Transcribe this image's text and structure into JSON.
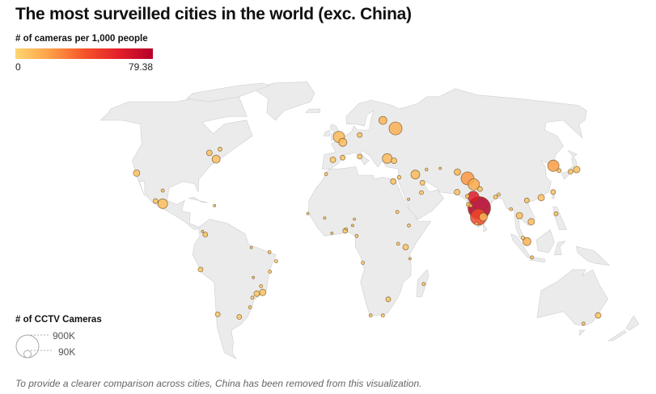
{
  "title": "The most surveilled cities in the world (exc. China)",
  "color_legend": {
    "title": "# of cameras per 1,000 people",
    "min_label": "0",
    "max_label": "79.38",
    "min": 0,
    "max": 79.38,
    "colors": [
      "#fdd671",
      "#fca046",
      "#f5542a",
      "#e3202a",
      "#b5002a"
    ]
  },
  "size_legend": {
    "title": "# of CCTV Cameras",
    "big_label": "900K",
    "small_label": "90K",
    "big_value": 900000,
    "small_value": 90000
  },
  "footnote": "To provide a clearer comparison across cities, China has been removed from this visualization.",
  "colors": {
    "land": "#ebebeb",
    "border": "#cfcfcf",
    "bubble_stroke": "#6b4c1e"
  },
  "bubbles": [
    {
      "lon": -0.1,
      "lat": 51.5,
      "rate": 10,
      "cameras": 225000
    },
    {
      "lon": 2.35,
      "lat": 48.85,
      "rate": 8,
      "cameras": 115000
    },
    {
      "lon": 13.4,
      "lat": 52.5,
      "rate": 6,
      "cameras": 41000
    },
    {
      "lon": 37.6,
      "lat": 55.75,
      "rate": 14,
      "cameras": 294000
    },
    {
      "lon": 30.3,
      "lat": 59.9,
      "rate": 12,
      "cameras": 115000
    },
    {
      "lon": -3.7,
      "lat": 40.4,
      "rate": 6,
      "cameras": 56000
    },
    {
      "lon": 2.2,
      "lat": 41.4,
      "rate": 6,
      "cameras": 41000
    },
    {
      "lon": 12.5,
      "lat": 41.9,
      "rate": 6,
      "cameras": 41000
    },
    {
      "lon": 29.0,
      "lat": 41.0,
      "rate": 10,
      "cameras": 165000
    },
    {
      "lon": 32.9,
      "lat": 39.9,
      "rate": 7,
      "cameras": 56000
    },
    {
      "lon": -7.6,
      "lat": 33.6,
      "rate": 5,
      "cameras": 18000
    },
    {
      "lon": 31.2,
      "lat": 30.0,
      "rate": 7,
      "cameras": 56000
    },
    {
      "lon": 34.8,
      "lat": 32.0,
      "rate": 5,
      "cameras": 25000
    },
    {
      "lon": 44.4,
      "lat": 33.3,
      "rate": 10,
      "cameras": 140000
    },
    {
      "lon": 51.4,
      "lat": 35.7,
      "rate": 5,
      "cameras": 15000
    },
    {
      "lon": 47.9,
      "lat": 29.4,
      "rate": 6,
      "cameras": 41000
    },
    {
      "lon": 46.7,
      "lat": 24.7,
      "rate": 6,
      "cameras": 29000
    },
    {
      "lon": 39.2,
      "lat": 21.5,
      "rate": 5,
      "cameras": 10000
    },
    {
      "lon": 59.6,
      "lat": 36.3,
      "rate": 5,
      "cameras": 10000
    },
    {
      "lon": 69.2,
      "lat": 34.5,
      "rate": 12,
      "cameras": 73000
    },
    {
      "lon": 74.3,
      "lat": 31.5,
      "rate": 22,
      "cameras": 294000
    },
    {
      "lon": 77.2,
      "lat": 28.6,
      "rate": 16,
      "cameras": 225000
    },
    {
      "lon": 80.3,
      "lat": 26.4,
      "rate": 8,
      "cameras": 41000
    },
    {
      "lon": 67.0,
      "lat": 24.9,
      "rate": 8,
      "cameras": 56000
    },
    {
      "lon": 72.6,
      "lat": 23.0,
      "rate": 10,
      "cameras": 29000
    },
    {
      "lon": 75.9,
      "lat": 22.7,
      "rate": 62,
      "cameras": 225000
    },
    {
      "lon": 72.8,
      "lat": 19.0,
      "rate": 10,
      "cameras": 41000
    },
    {
      "lon": 73.9,
      "lat": 18.5,
      "rate": 10,
      "cameras": 18000
    },
    {
      "lon": 78.5,
      "lat": 17.4,
      "rate": 79.38,
      "cameras": 900000
    },
    {
      "lon": 77.6,
      "lat": 13.0,
      "rate": 45,
      "cameras": 460000
    },
    {
      "lon": 80.3,
      "lat": 13.1,
      "rate": 12,
      "cameras": 115000
    },
    {
      "lon": 76.3,
      "lat": 9.9,
      "rate": 10,
      "cameras": 18000
    },
    {
      "lon": 88.4,
      "lat": 22.6,
      "rate": 6,
      "cameras": 29000
    },
    {
      "lon": 90.4,
      "lat": 23.8,
      "rate": 6,
      "cameras": 18000
    },
    {
      "lon": 96.2,
      "lat": 16.8,
      "rate": 6,
      "cameras": 18000
    },
    {
      "lon": 100.5,
      "lat": 13.75,
      "rate": 8,
      "cameras": 73000
    },
    {
      "lon": 105.8,
      "lat": 21.0,
      "rate": 7,
      "cameras": 41000
    },
    {
      "lon": 106.7,
      "lat": 10.8,
      "rate": 8,
      "cameras": 73000
    },
    {
      "lon": 103.8,
      "lat": 1.35,
      "rate": 14,
      "cameras": 115000
    },
    {
      "lon": 101.7,
      "lat": 3.1,
      "rate": 6,
      "cameras": 25000
    },
    {
      "lon": 106.8,
      "lat": -6.2,
      "rate": 6,
      "cameras": 18000
    },
    {
      "lon": 121.0,
      "lat": 14.6,
      "rate": 6,
      "cameras": 29000
    },
    {
      "lon": 114.2,
      "lat": 22.3,
      "rate": 8,
      "cameras": 73000
    },
    {
      "lon": 121.5,
      "lat": 25.0,
      "rate": 7,
      "cameras": 41000
    },
    {
      "lon": 127.0,
      "lat": 37.5,
      "rate": 20,
      "cameras": 225000
    },
    {
      "lon": 129.1,
      "lat": 35.2,
      "rate": 6,
      "cameras": 29000
    },
    {
      "lon": 139.7,
      "lat": 35.7,
      "rate": 7,
      "cameras": 73000
    },
    {
      "lon": 135.5,
      "lat": 34.7,
      "rate": 6,
      "cameras": 41000
    },
    {
      "lon": -17.4,
      "lat": 14.7,
      "rate": 4,
      "cameras": 10000
    },
    {
      "lon": -8.0,
      "lat": 12.6,
      "rate": 4,
      "cameras": 10000
    },
    {
      "lon": -4.0,
      "lat": 5.3,
      "rate": 4,
      "cameras": 10000
    },
    {
      "lon": 3.4,
      "lat": 6.5,
      "rate": 5,
      "cameras": 41000
    },
    {
      "lon": 3.9,
      "lat": 7.4,
      "rate": 4,
      "cameras": 10000
    },
    {
      "lon": 7.5,
      "lat": 9.0,
      "rate": 4,
      "cameras": 10000
    },
    {
      "lon": 8.5,
      "lat": 12.0,
      "rate": 4,
      "cameras": 10000
    },
    {
      "lon": 9.7,
      "lat": 4.0,
      "rate": 5,
      "cameras": 18000
    },
    {
      "lon": 32.5,
      "lat": 15.5,
      "rate": 5,
      "cameras": 18000
    },
    {
      "lon": 38.7,
      "lat": 9.0,
      "rate": 5,
      "cameras": 18000
    },
    {
      "lon": 36.8,
      "lat": -1.3,
      "rate": 6,
      "cameras": 56000
    },
    {
      "lon": 32.6,
      "lat": 0.3,
      "rate": 5,
      "cameras": 18000
    },
    {
      "lon": 39.3,
      "lat": -6.8,
      "rate": 4,
      "cameras": 10000
    },
    {
      "lon": 13.2,
      "lat": -8.8,
      "rate": 5,
      "cameras": 18000
    },
    {
      "lon": 47.5,
      "lat": -18.9,
      "rate": 5,
      "cameras": 18000
    },
    {
      "lon": 28.0,
      "lat": -26.2,
      "rate": 6,
      "cameras": 41000
    },
    {
      "lon": 25.6,
      "lat": -33.9,
      "rate": 5,
      "cameras": 18000
    },
    {
      "lon": 18.4,
      "lat": -33.9,
      "rate": 5,
      "cameras": 18000
    },
    {
      "lon": -118.2,
      "lat": 34.0,
      "rate": 7,
      "cameras": 73000
    },
    {
      "lon": -79.4,
      "lat": 43.7,
      "rate": 7,
      "cameras": 56000
    },
    {
      "lon": -73.6,
      "lat": 45.5,
      "rate": 6,
      "cameras": 29000
    },
    {
      "lon": -74.0,
      "lat": 40.7,
      "rate": 8,
      "cameras": 115000
    },
    {
      "lon": -100.3,
      "lat": 25.7,
      "rate": 6,
      "cameras": 18000
    },
    {
      "lon": -103.3,
      "lat": 20.7,
      "rate": 7,
      "cameras": 41000
    },
    {
      "lon": -99.1,
      "lat": 19.4,
      "rate": 9,
      "cameras": 165000
    },
    {
      "lon": -69.9,
      "lat": 18.5,
      "rate": 5,
      "cameras": 10000
    },
    {
      "lon": -74.0,
      "lat": 4.7,
      "rate": 7,
      "cameras": 41000
    },
    {
      "lon": -75.6,
      "lat": 6.2,
      "rate": 5,
      "cameras": 10000
    },
    {
      "lon": -77.0,
      "lat": -12.0,
      "rate": 6,
      "cameras": 41000
    },
    {
      "lon": -47.9,
      "lat": -15.8,
      "rate": 5,
      "cameras": 10000
    },
    {
      "lon": -38.5,
      "lat": -13.0,
      "rate": 5,
      "cameras": 18000
    },
    {
      "lon": -34.9,
      "lat": -8.0,
      "rate": 5,
      "cameras": 18000
    },
    {
      "lon": -38.5,
      "lat": -3.7,
      "rate": 5,
      "cameras": 18000
    },
    {
      "lon": -43.9,
      "lat": -19.9,
      "rate": 5,
      "cameras": 18000
    },
    {
      "lon": -43.2,
      "lat": -22.9,
      "rate": 7,
      "cameras": 73000
    },
    {
      "lon": -46.6,
      "lat": -23.5,
      "rate": 6,
      "cameras": 56000
    },
    {
      "lon": -49.3,
      "lat": -25.4,
      "rate": 5,
      "cameras": 18000
    },
    {
      "lon": -51.2,
      "lat": -30.0,
      "rate": 5,
      "cameras": 18000
    },
    {
      "lon": -70.7,
      "lat": -33.4,
      "rate": 6,
      "cameras": 41000
    },
    {
      "lon": -58.4,
      "lat": -34.6,
      "rate": 6,
      "cameras": 41000
    },
    {
      "lon": -48.5,
      "lat": -1.5,
      "rate": 5,
      "cameras": 10000
    },
    {
      "lon": 151.2,
      "lat": -33.9,
      "rate": 7,
      "cameras": 56000
    },
    {
      "lon": 145.0,
      "lat": -37.8,
      "rate": 5,
      "cameras": 18000
    }
  ]
}
